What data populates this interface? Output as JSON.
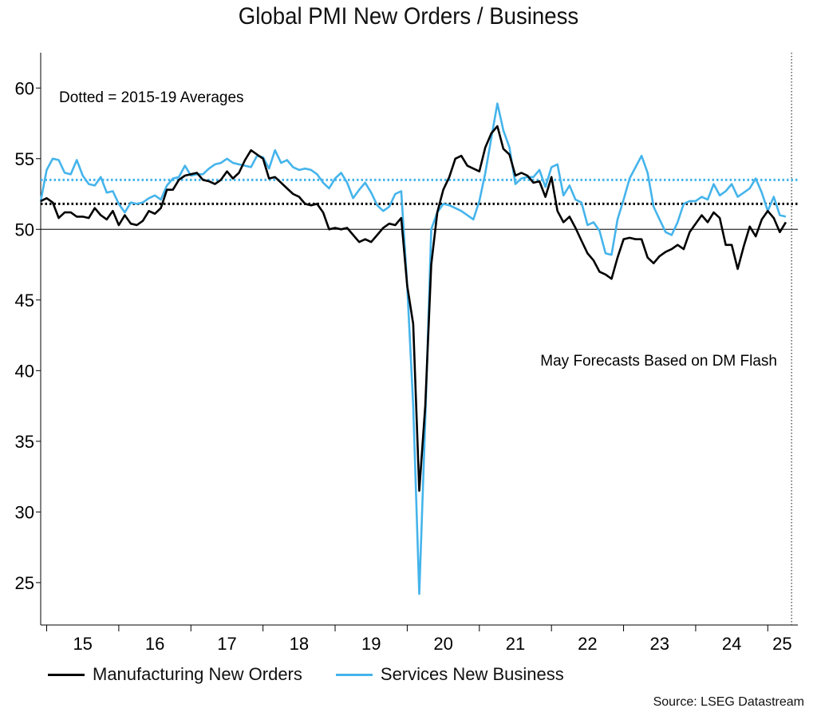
{
  "chart_data": {
    "type": "line",
    "title": "Global PMI New Orders / Business",
    "xlabel": "",
    "ylabel": "",
    "ylim": [
      22,
      62.5
    ],
    "x_range": [
      2014.917,
      2025.417
    ],
    "yticks": [
      25,
      30,
      35,
      40,
      45,
      50,
      55,
      60
    ],
    "xtick_labels": [
      {
        "label": "15",
        "x": 2015.5
      },
      {
        "label": "16",
        "x": 2016.5
      },
      {
        "label": "17",
        "x": 2017.5
      },
      {
        "label": "18",
        "x": 2018.5
      },
      {
        "label": "19",
        "x": 2019.5
      },
      {
        "label": "20",
        "x": 2020.5
      },
      {
        "label": "21",
        "x": 2021.5
      },
      {
        "label": "22",
        "x": 2022.5
      },
      {
        "label": "23",
        "x": 2023.5
      },
      {
        "label": "24",
        "x": 2024.5
      },
      {
        "label": "25",
        "x": 2025.2
      }
    ],
    "year_boundaries": [
      2015,
      2016,
      2017,
      2018,
      2019,
      2020,
      2021,
      2022,
      2023,
      2024,
      2025
    ],
    "reference_line": 50,
    "x_start": 2014.917,
    "x_step": 0.08333,
    "series": [
      {
        "name": "Manufacturing New Orders",
        "color": "#000000",
        "avg_2015_19": 51.8,
        "values": [
          52.0,
          52.2,
          51.9,
          50.8,
          51.2,
          51.2,
          50.9,
          50.9,
          50.8,
          51.5,
          51.0,
          50.7,
          51.3,
          50.3,
          51.0,
          50.4,
          50.3,
          50.6,
          51.3,
          51.1,
          51.5,
          52.8,
          52.8,
          53.5,
          53.8,
          53.9,
          54.0,
          53.5,
          53.4,
          53.2,
          53.5,
          54.1,
          53.6,
          54.0,
          54.9,
          55.6,
          55.3,
          55.0,
          53.6,
          53.7,
          53.3,
          52.9,
          52.5,
          52.3,
          51.8,
          51.7,
          51.8,
          51.2,
          50.0,
          50.1,
          50.0,
          50.1,
          49.6,
          49.1,
          49.3,
          49.1,
          49.6,
          50.1,
          50.4,
          50.3,
          50.8,
          46.0,
          43.3,
          31.5,
          37.5,
          47.5,
          51.2,
          52.8,
          53.7,
          55.0,
          55.2,
          54.5,
          54.3,
          54.1,
          55.8,
          56.8,
          57.3,
          55.7,
          55.3,
          53.8,
          54.0,
          53.8,
          53.3,
          53.4,
          52.3,
          53.7,
          51.3,
          50.5,
          50.9,
          50.1,
          49.2,
          48.3,
          47.8,
          47.0,
          46.8,
          46.5,
          48.0,
          49.3,
          49.4,
          49.3,
          49.3,
          48.0,
          47.6,
          48.1,
          48.4,
          48.6,
          48.9,
          48.6,
          49.8,
          50.4,
          51.0,
          50.5,
          51.2,
          50.8,
          48.9,
          48.9,
          47.2,
          48.8,
          50.2,
          49.5,
          50.7,
          51.3,
          50.8,
          49.8,
          50.5
        ]
      },
      {
        "name": "Services New Business",
        "color": "#45B4EB",
        "avg_2015_19": 53.5,
        "values": [
          52.0,
          54.2,
          55.0,
          54.9,
          54.0,
          53.9,
          54.9,
          53.8,
          53.2,
          53.1,
          53.7,
          52.6,
          52.7,
          51.8,
          51.2,
          51.9,
          51.8,
          51.9,
          52.2,
          52.4,
          52.1,
          53.1,
          53.6,
          53.7,
          54.5,
          53.8,
          53.9,
          53.9,
          54.3,
          54.6,
          54.7,
          55.0,
          54.7,
          54.6,
          54.5,
          54.4,
          55.2,
          55.1,
          54.3,
          55.6,
          54.7,
          54.9,
          54.4,
          54.2,
          54.3,
          54.2,
          53.9,
          53.3,
          52.9,
          53.6,
          54.0,
          53.3,
          52.2,
          52.8,
          53.3,
          52.6,
          51.7,
          51.3,
          51.6,
          52.5,
          52.7,
          46.0,
          37.5,
          24.2,
          36.5,
          50.0,
          51.2,
          51.8,
          51.7,
          51.5,
          51.3,
          51.0,
          50.7,
          52.0,
          54.0,
          56.5,
          58.9,
          57.0,
          55.8,
          53.2,
          53.6,
          53.7,
          53.7,
          54.2,
          53.0,
          54.4,
          54.6,
          52.4,
          53.1,
          52.1,
          51.9,
          50.3,
          50.5,
          49.9,
          48.3,
          48.2,
          50.7,
          52.1,
          53.6,
          54.4,
          55.2,
          54.0,
          51.6,
          50.7,
          49.8,
          49.6,
          50.5,
          51.8,
          52.0,
          52.0,
          52.3,
          52.1,
          53.2,
          52.4,
          52.7,
          53.2,
          52.3,
          52.6,
          52.9,
          53.6,
          52.6,
          51.3,
          52.3,
          51.0,
          50.9
        ]
      }
    ],
    "annotations": {
      "averages_note": "Dotted = 2015-19 Averages",
      "forecast_note": "May Forecasts Based on DM Flash"
    },
    "forecast_marker_x": 2025.33,
    "legend_position": "bottom-left",
    "source": "Source: LSEG Datastream"
  }
}
